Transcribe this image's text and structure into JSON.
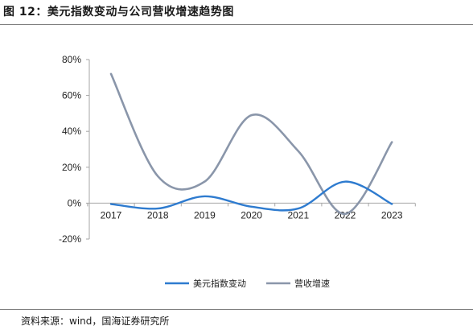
{
  "header": {
    "title": "图 12：美元指数变动与公司营收增速趋势图"
  },
  "footer": {
    "source": "资料来源：wind，国海证券研究所"
  },
  "colors": {
    "series_1": "#2e7bcf",
    "series_2": "#8a96aa",
    "axis": "#a6a6a6"
  },
  "chart_data": {
    "type": "line",
    "smooth": true,
    "x": [
      "2017",
      "2018",
      "2019",
      "2020",
      "2021",
      "2022",
      "2023"
    ],
    "y_ticks": [
      "80%",
      "60%",
      "40%",
      "20%",
      "0%",
      "-20%"
    ],
    "ylim": [
      -20,
      80
    ],
    "grid": false,
    "legend_position": "bottom",
    "series": [
      {
        "name": "美元指数变动",
        "values": [
          -0.5,
          -3,
          3.8,
          -2,
          -3,
          12,
          -0.5
        ]
      },
      {
        "name": "营收增速",
        "values": [
          72,
          15,
          12,
          49,
          29,
          -6,
          34
        ]
      }
    ]
  }
}
